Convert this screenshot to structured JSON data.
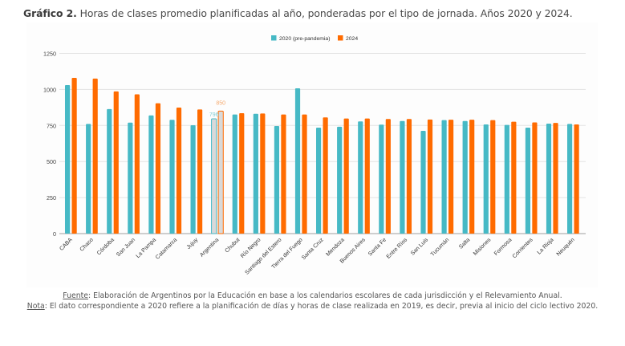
{
  "header": {
    "title_bold": "Gráfico 2.",
    "title_rest": " Horas de clases promedio planificadas al año, ponderadas por el tipo de jornada. Años 2020 y 2024."
  },
  "footer": {
    "source_label": "Fuente",
    "source_text": ": Elaboración de Argentinos por la Educación en base a los calendarios escolares de cada jurisdicción y el Relevamiento Anual.",
    "note_label": "Nota",
    "note_text": ": El dato correspondiente a 2020 refiere a la planificación de días y horas de clase realizada en 2019, es decir, previa al inicio del ciclo lectivo 2020."
  },
  "colors": {
    "series_2020": "#46B9C5",
    "series_2024": "#FF6B00",
    "highlight_fill": "#D9D9D9",
    "grid": "#E3E3E3",
    "axis": "#9E9E9E"
  },
  "chart_data": {
    "type": "bar",
    "title": "Horas de clases promedio planificadas al año, ponderadas por el tipo de jornada. Años 2020 y 2024.",
    "xlabel": "",
    "ylabel": "",
    "ylim": [
      0,
      1250
    ],
    "yticks": [
      0,
      250,
      500,
      750,
      1000,
      1250
    ],
    "grid": true,
    "legend_position": "top-center",
    "highlight_category": "Argentina",
    "categories": [
      "CABA",
      "Chaco",
      "Córdoba",
      "San Juan",
      "La Pampa",
      "Catamarca",
      "Jujuy",
      "Argentina",
      "Chubut",
      "Río Negro",
      "Santiago del Estero",
      "Tierra del Fuego",
      "Santa Cruz",
      "Mendoza",
      "Buenos Aires",
      "Santa Fe",
      "Entre Ríos",
      "San Luis",
      "Tucumán",
      "Salta",
      "Misiones",
      "Formosa",
      "Corrientes",
      "La Rioja",
      "Neuquén"
    ],
    "series": [
      {
        "name": "2020 (pre-pandemia)",
        "values": [
          1030,
          761,
          864,
          770,
          820,
          789,
          752,
          796,
          826,
          831,
          746,
          1008,
          735,
          741,
          778,
          756,
          781,
          713,
          787,
          781,
          757,
          754,
          735,
          763,
          761
        ]
      },
      {
        "name": "2024",
        "values": [
          1080,
          1075,
          986,
          966,
          904,
          874,
          861,
          850,
          835,
          833,
          826,
          826,
          806,
          798,
          798,
          795,
          795,
          791,
          790,
          790,
          787,
          776,
          771,
          768,
          757
        ]
      }
    ],
    "data_labels": [
      {
        "category": "Argentina",
        "series": "2020 (pre-pandemia)",
        "text": "796"
      },
      {
        "category": "Argentina",
        "series": "2024",
        "text": "850"
      }
    ]
  }
}
